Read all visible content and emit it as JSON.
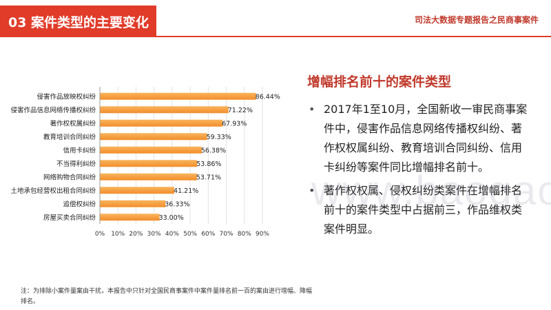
{
  "header": {
    "section_title": "03 案件类型的主要变化",
    "report_title": "司法大数据专题报告之民商事案件"
  },
  "chart_data": {
    "type": "bar",
    "orientation": "horizontal",
    "categories": [
      "侵害作品放映权纠纷",
      "侵害作品信息网络传播权纠纷",
      "著作权权属纠纷",
      "教育培训合同纠纷",
      "信用卡纠纷",
      "不当得利纠纷",
      "网络购物合同纠纷",
      "土地承包经营权出租合同纠纷",
      "追偿权纠纷",
      "房屋买卖合同纠纷"
    ],
    "values": [
      86.44,
      71.22,
      67.93,
      59.33,
      56.38,
      53.86,
      53.71,
      41.21,
      36.33,
      33.0
    ],
    "value_labels": [
      "86.44%",
      "71.22%",
      "67.93%",
      "59.33%",
      "56.38%",
      "53.86%",
      "53.71%",
      "41.21%",
      "36.33%",
      "33.00%"
    ],
    "xlim": [
      0,
      90
    ],
    "x_ticks": [
      "0%",
      "10%",
      "20%",
      "30%",
      "40%",
      "50%",
      "60%",
      "70%",
      "80%",
      "90%"
    ],
    "grid": "vertical",
    "bar_color": "#f28e2b",
    "bar_color_light": "#f9b45d"
  },
  "panel": {
    "heading": "增幅排名前十的案件类型",
    "bullets": [
      "2017年1至10月，全国新收一审民商事案件中，侵害作品信息网络传播权纠纷、著作权权属纠纷、教育培训合同纠纷、信用卡纠纷等案件同比增幅排名前十。",
      "著作权权属、侵权纠纷类案件在增幅排名前十的案件类型中占据前三，作品维权类案件明显。"
    ]
  },
  "watermark": "www.baogao.com",
  "note": "注：为排除小案件量案由干扰，本报告中只针对全国民商事案件中案件量排名前一百的案由进行增幅、降幅排名。",
  "colors": {
    "accent_red": "#e13b2a",
    "dark_red": "#c0392b"
  }
}
